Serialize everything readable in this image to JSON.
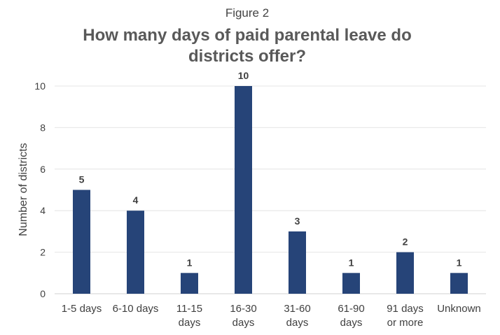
{
  "figure_label": "Figure 2",
  "chart_data": {
    "type": "bar",
    "title": "How many days of paid parental leave do districts offer?",
    "title_lines": [
      "How many days of paid parental leave do",
      "districts offer?"
    ],
    "xlabel": "",
    "ylabel": "Number of districts",
    "categories": [
      "1-5 days",
      "6-10 days",
      "11-15 days",
      "16-30 days",
      "31-60 days",
      "61-90 days",
      "91 days or more",
      "Unknown"
    ],
    "category_lines": [
      [
        "1-5 days"
      ],
      [
        "6-10 days"
      ],
      [
        "11-15",
        "days"
      ],
      [
        "16-30",
        "days"
      ],
      [
        "31-60",
        "days"
      ],
      [
        "61-90",
        "days"
      ],
      [
        "91 days",
        "or more"
      ],
      [
        "Unknown"
      ]
    ],
    "values": [
      5,
      4,
      1,
      10,
      3,
      1,
      2,
      1
    ],
    "ylim": [
      0,
      10
    ],
    "yticks": [
      0,
      2,
      4,
      6,
      8,
      10
    ],
    "grid": true,
    "legend": "none",
    "bar_color": "#264478"
  }
}
